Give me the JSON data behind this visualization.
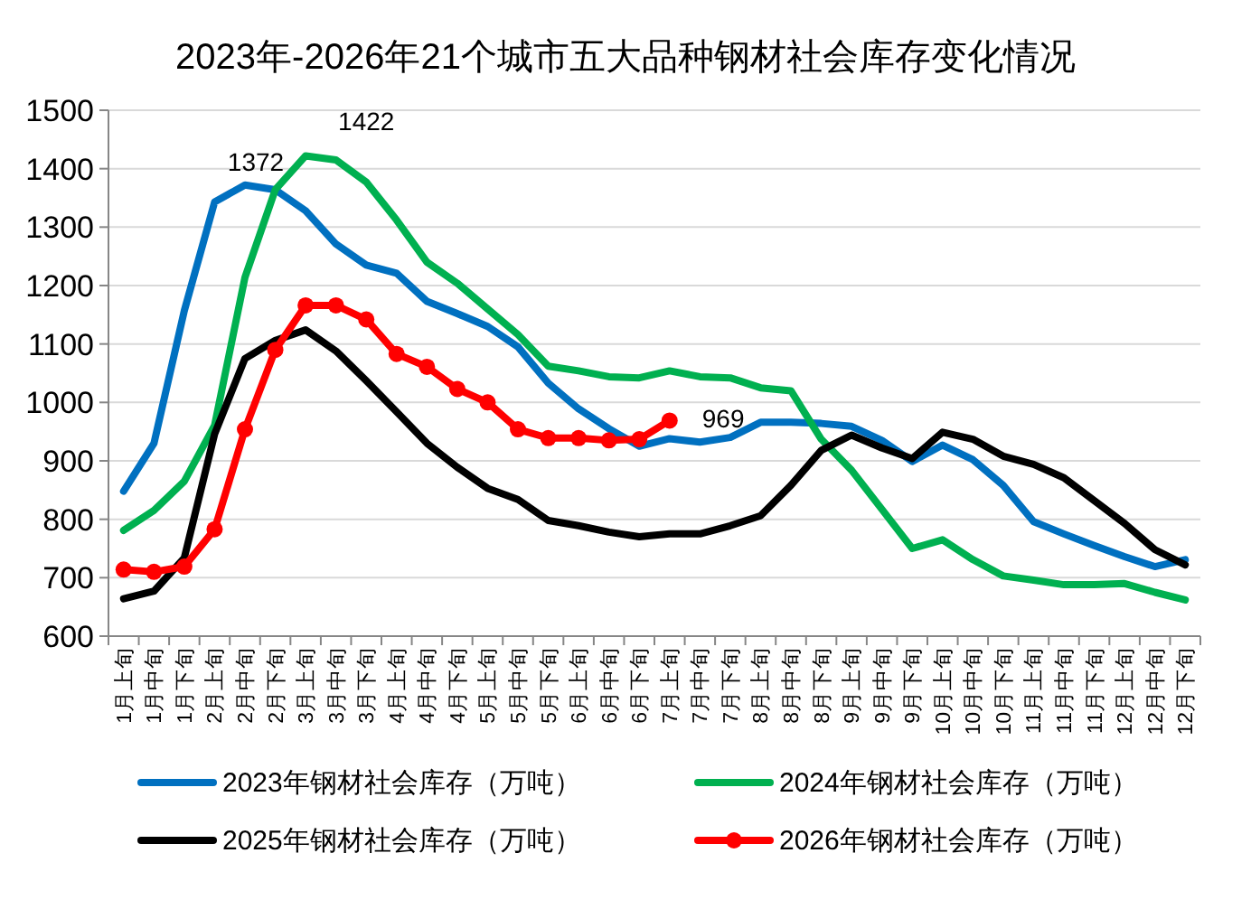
{
  "chart_data": {
    "type": "line",
    "title": "2023年-2026年21个城市五大品种钢材社会库存变化情况",
    "categories": [
      "1月上旬",
      "1月中旬",
      "1月下旬",
      "2月上旬",
      "2月中旬",
      "2月下旬",
      "3月上旬",
      "3月中旬",
      "3月下旬",
      "4月上旬",
      "4月中旬",
      "4月下旬",
      "5月上旬",
      "5月中旬",
      "5月下旬",
      "6月上旬",
      "6月中旬",
      "6月下旬",
      "7月上旬",
      "7月中旬",
      "7月下旬",
      "8月上旬",
      "8月中旬",
      "8月下旬",
      "9月上旬",
      "9月中旬",
      "9月下旬",
      "10月上旬",
      "10月中旬",
      "10月下旬",
      "11月上旬",
      "11月中旬",
      "11月下旬",
      "12月上旬",
      "12月中旬",
      "12月下旬"
    ],
    "series": [
      {
        "name": "2023年钢材社会库存（万吨）",
        "color": "#0070c0",
        "marker": "none",
        "values": [
          848,
          930,
          1157,
          1343,
          1372,
          1364,
          1328,
          1271,
          1235,
          1221,
          1173,
          1152,
          1130,
          1095,
          1033,
          989,
          955,
          925,
          938,
          932,
          940,
          966,
          966,
          964,
          959,
          935,
          899,
          927,
          902,
          858,
          796,
          775,
          755,
          736,
          719,
          731
        ]
      },
      {
        "name": "2024年钢材社会库存（万吨）",
        "color": "#00b050",
        "marker": "none",
        "values": [
          781,
          815,
          865,
          961,
          1214,
          1364,
          1422,
          1415,
          1377,
          1312,
          1240,
          1204,
          1160,
          1116,
          1062,
          1054,
          1044,
          1042,
          1054,
          1044,
          1042,
          1025,
          1020,
          937,
          884,
          817,
          750,
          765,
          731,
          703,
          696,
          688,
          688,
          690,
          675,
          662
        ]
      },
      {
        "name": "2025年钢材社会库存（万吨）",
        "color": "#000000",
        "marker": "none",
        "values": [
          664,
          677,
          734,
          946,
          1075,
          1106,
          1124,
          1088,
          1037,
          984,
          930,
          889,
          853,
          834,
          798,
          789,
          778,
          770,
          775,
          775,
          789,
          806,
          858,
          918,
          944,
          922,
          904,
          949,
          937,
          908,
          894,
          871,
          832,
          793,
          748,
          722
        ]
      },
      {
        "name": "2026年钢材社会库存（万吨）",
        "color": "#ff0000",
        "marker": "circle",
        "values": [
          714,
          710,
          719,
          783,
          954,
          1090,
          1166,
          1166,
          1142,
          1083,
          1061,
          1023,
          1000,
          954,
          939,
          939,
          935,
          937,
          969,
          null,
          null,
          null,
          null,
          null,
          null,
          null,
          null,
          null,
          null,
          null,
          null,
          null,
          null,
          null,
          null,
          null
        ]
      }
    ],
    "ylim": [
      600,
      1500
    ],
    "yticks": [
      600,
      700,
      800,
      900,
      1000,
      1100,
      1200,
      1300,
      1400,
      1500
    ],
    "grid": "y",
    "legend": "bottom",
    "annotations": [
      {
        "text": "1372",
        "x": "2月中旬",
        "y": 1372
      },
      {
        "text": "1422",
        "x": "3月上旬",
        "y": 1422
      },
      {
        "text": "969",
        "x": "7月上旬",
        "y": 969
      }
    ]
  }
}
